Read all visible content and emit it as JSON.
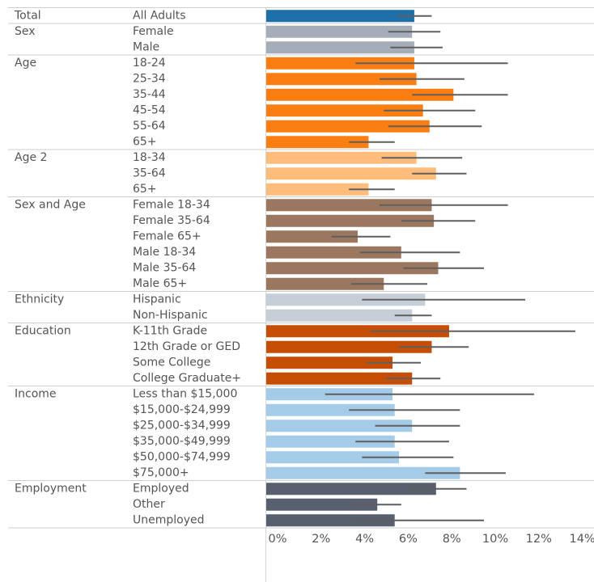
{
  "chart_data": {
    "type": "bar",
    "orientation": "horizontal",
    "error_bars": true,
    "x_axis": {
      "range": [
        0,
        14.5
      ],
      "ticks": [
        0,
        2,
        4,
        6,
        8,
        10,
        12,
        14
      ],
      "tick_labels": [
        "0%",
        "2%",
        "4%",
        "6%",
        "8%",
        "10%",
        "12%",
        "14%"
      ]
    },
    "groups": [
      {
        "name": "Total",
        "color": "#1f6fa8",
        "rows": [
          {
            "label": "All Adults",
            "value": 6.8,
            "low": 6.0,
            "high": 7.6
          }
        ]
      },
      {
        "name": "Sex",
        "color": "#a5adb9",
        "rows": [
          {
            "label": "Female",
            "value": 6.7,
            "low": 5.6,
            "high": 8.0
          },
          {
            "label": "Male",
            "value": 6.8,
            "low": 5.7,
            "high": 8.1
          }
        ]
      },
      {
        "name": "Age",
        "color": "#fb7e12",
        "rows": [
          {
            "label": "18-24",
            "value": 6.8,
            "low": 4.1,
            "high": 11.1
          },
          {
            "label": "25-34",
            "value": 6.9,
            "low": 5.2,
            "high": 9.1
          },
          {
            "label": "35-44",
            "value": 8.6,
            "low": 6.7,
            "high": 11.1
          },
          {
            "label": "45-54",
            "value": 7.2,
            "low": 5.4,
            "high": 9.6
          },
          {
            "label": "55-64",
            "value": 7.5,
            "low": 5.6,
            "high": 9.9
          },
          {
            "label": "65+",
            "value": 4.7,
            "low": 3.8,
            "high": 5.9
          }
        ]
      },
      {
        "name": "Age 2",
        "color": "#ffbc7b",
        "rows": [
          {
            "label": "18-34",
            "value": 6.9,
            "low": 5.3,
            "high": 9.0
          },
          {
            "label": "35-64",
            "value": 7.8,
            "low": 6.7,
            "high": 9.2
          },
          {
            "label": "65+",
            "value": 4.7,
            "low": 3.8,
            "high": 5.9
          }
        ]
      },
      {
        "name": "Sex and Age",
        "color": "#9c775f",
        "rows": [
          {
            "label": "Female 18-34",
            "value": 7.6,
            "low": 5.2,
            "high": 11.1
          },
          {
            "label": "Female 35-64",
            "value": 7.7,
            "low": 6.2,
            "high": 9.6
          },
          {
            "label": "Female 65+",
            "value": 4.2,
            "low": 3.0,
            "high": 5.7
          },
          {
            "label": "Male 18-34",
            "value": 6.2,
            "low": 4.3,
            "high": 8.9
          },
          {
            "label": "Male 35-64",
            "value": 7.9,
            "low": 6.3,
            "high": 10.0
          },
          {
            "label": "Male 65+",
            "value": 5.4,
            "low": 3.9,
            "high": 7.4
          }
        ]
      },
      {
        "name": "Ethnicity",
        "color": "#c6ced8",
        "rows": [
          {
            "label": "Hispanic",
            "value": 7.3,
            "low": 4.4,
            "high": 11.9
          },
          {
            "label": "Non-Hispanic",
            "value": 6.7,
            "low": 5.9,
            "high": 7.6
          }
        ]
      },
      {
        "name": "Education",
        "color": "#c54e04",
        "rows": [
          {
            "label": "K-11th Grade",
            "value": 8.4,
            "low": 4.8,
            "high": 14.2
          },
          {
            "label": "12th Grade or GED",
            "value": 7.6,
            "low": 6.1,
            "high": 9.3
          },
          {
            "label": "Some College",
            "value": 5.8,
            "low": 4.6,
            "high": 7.1
          },
          {
            "label": "College Graduate+",
            "value": 6.7,
            "low": 5.5,
            "high": 8.0
          }
        ]
      },
      {
        "name": "Income",
        "color": "#a4cce8",
        "rows": [
          {
            "label": "Less than $15,000",
            "value": 5.8,
            "low": 2.7,
            "high": 12.3
          },
          {
            "label": "$15,000-$24,999",
            "value": 5.9,
            "low": 3.8,
            "high": 8.9
          },
          {
            "label": "$25,000-$34,999",
            "value": 6.7,
            "low": 5.0,
            "high": 8.9
          },
          {
            "label": "$35,000-$49,999",
            "value": 5.9,
            "low": 4.1,
            "high": 8.4
          },
          {
            "label": "$50,000-$74,999",
            "value": 6.1,
            "low": 4.4,
            "high": 8.6
          },
          {
            "label": "$75,000+",
            "value": 8.9,
            "low": 7.3,
            "high": 11.0
          }
        ]
      },
      {
        "name": "Employment",
        "color": "#585f6e",
        "rows": [
          {
            "label": "Employed",
            "value": 7.8,
            "low": 6.4,
            "high": 9.2
          },
          {
            "label": "Other",
            "value": 5.1,
            "low": 4.0,
            "high": 6.2
          },
          {
            "label": "Unemployed",
            "value": 5.9,
            "low": 4.0,
            "high": 10.0
          }
        ]
      }
    ]
  }
}
